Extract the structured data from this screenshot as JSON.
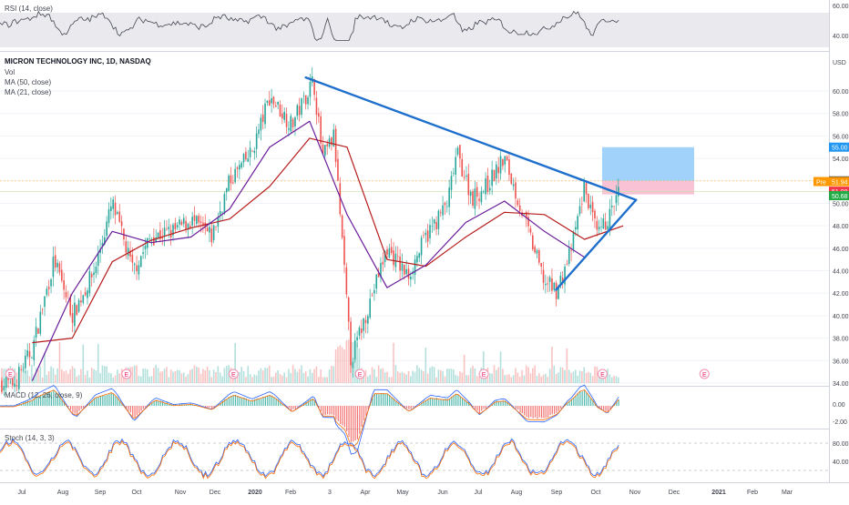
{
  "symbol": {
    "title": "MICRON TECHNOLOGY INC, 1D, NASDAQ",
    "currency": "USD",
    "indicators": [
      "Vol",
      "MA (50, close)",
      "MA (21, close)"
    ]
  },
  "panes": {
    "rsi": {
      "label": "RSI (14, close)",
      "ticks": [
        "60.00",
        "40.00"
      ],
      "bands": [
        30,
        70
      ]
    },
    "macd": {
      "label": "MACD (12, 26, close, 9)",
      "ticks": [
        "0.00",
        "-2.00"
      ]
    },
    "stoch": {
      "label": "Stoch (14, 3, 3)",
      "ticks": [
        "80.00",
        "40.00"
      ],
      "bands": [
        20,
        80
      ]
    }
  },
  "price_axis": {
    "ticks": [
      "60.00",
      "58.00",
      "56.00",
      "54.00",
      "52.00",
      "50.00",
      "48.00",
      "46.00",
      "44.00",
      "42.00",
      "40.00",
      "38.00",
      "36.00",
      "34.00"
    ],
    "badges": [
      {
        "label": "55.00",
        "value": 55.0,
        "color": "#2196f3"
      },
      {
        "label": "52.00",
        "value": 52.0,
        "color": "#434651"
      },
      {
        "label": "51.94",
        "prefix": "Pre",
        "value": 51.94,
        "color": "#ff9800"
      },
      {
        "label": "51.08",
        "value": 51.08,
        "color": "#f23645"
      },
      {
        "label": "50.68",
        "value": 50.68,
        "color": "#22ab45"
      }
    ]
  },
  "time_axis": {
    "labels": [
      "Jul",
      "Aug",
      "Sep",
      "Oct",
      "Nov",
      "Dec",
      "2020",
      "Feb",
      "3",
      "Apr",
      "May",
      "Jun",
      "Jul",
      "Aug",
      "Sep",
      "Oct",
      "Nov",
      "Dec",
      "2021",
      "Feb",
      "Mar"
    ]
  },
  "earnings_marker": "E",
  "colors": {
    "up": "#26a69a",
    "down": "#ef5350",
    "ma50": "#b71c1c",
    "ma21": "#6a1b9a",
    "trend": "#1e6fcc",
    "target": "#90caf9",
    "stop": "#f8bbd0"
  },
  "chart_data": {
    "type": "line",
    "title": "MICRON TECHNOLOGY INC, 1D, NASDAQ",
    "xlabel": "",
    "ylabel": "USD",
    "ylim": [
      33,
      63
    ],
    "grid": true,
    "x": [
      "2019-07",
      "2019-08",
      "2019-09",
      "2019-10",
      "2019-11",
      "2019-12",
      "2020-01",
      "2020-02",
      "2020-03",
      "2020-04",
      "2020-05",
      "2020-06",
      "2020-07",
      "2020-08",
      "2020-09",
      "2020-10"
    ],
    "series": [
      {
        "name": "MA (50, close)",
        "values": [
          37.6,
          38.0,
          44.8,
          46.7,
          47.8,
          48.6,
          51.5,
          55.8,
          55.0,
          45.0,
          44.4,
          47.0,
          49.2,
          49.0,
          46.8,
          48.0
        ]
      },
      {
        "name": "MA (21, close)",
        "values": [
          34.2,
          42.0,
          47.5,
          46.5,
          47.0,
          49.5,
          55.0,
          57.3,
          49.0,
          42.5,
          44.5,
          48.3,
          50.2,
          47.5,
          45.2,
          49.0
        ]
      }
    ],
    "price_path": [
      [
        "2019-07-01",
        34.0
      ],
      [
        "2019-07-15",
        37.0
      ],
      [
        "2019-08-01",
        45.0
      ],
      [
        "2019-08-15",
        40.0
      ],
      [
        "2019-09-01",
        44.0
      ],
      [
        "2019-09-15",
        50.0
      ],
      [
        "2019-10-01",
        44.0
      ],
      [
        "2019-10-15",
        47.0
      ],
      [
        "2019-11-01",
        47.5
      ],
      [
        "2019-11-15",
        48.5
      ],
      [
        "2019-12-01",
        47.0
      ],
      [
        "2019-12-15",
        52.0
      ],
      [
        "2020-01-01",
        54.5
      ],
      [
        "2020-01-15",
        59.5
      ],
      [
        "2020-02-01",
        57.0
      ],
      [
        "2020-02-18",
        61.0
      ],
      [
        "2020-02-25",
        54.0
      ],
      [
        "2020-03-05",
        56.0
      ],
      [
        "2020-03-18",
        36.0
      ],
      [
        "2020-04-01",
        41.0
      ],
      [
        "2020-04-15",
        46.0
      ],
      [
        "2020-05-01",
        43.5
      ],
      [
        "2020-05-15",
        47.0
      ],
      [
        "2020-06-01",
        50.0
      ],
      [
        "2020-06-08",
        54.5
      ],
      [
        "2020-06-20",
        50.5
      ],
      [
        "2020-07-01",
        51.5
      ],
      [
        "2020-07-15",
        54.0
      ],
      [
        "2020-07-25",
        50.5
      ],
      [
        "2020-08-01",
        48.0
      ],
      [
        "2020-08-15",
        43.0
      ],
      [
        "2020-08-25",
        42.2
      ],
      [
        "2020-09-05",
        46.0
      ],
      [
        "2020-09-15",
        51.5
      ],
      [
        "2020-09-25",
        47.0
      ],
      [
        "2020-10-05",
        49.0
      ],
      [
        "2020-10-12",
        51.1
      ]
    ],
    "trendlines": [
      {
        "from": [
          "2020-02-12",
          61.2
        ],
        "to": [
          "2020-10-25",
          50.3
        ]
      },
      {
        "from": [
          "2020-08-24",
          42.3
        ],
        "to": [
          "2020-10-25",
          50.3
        ]
      }
    ],
    "levels": {
      "target": 55.0,
      "entry": 52.0,
      "stop": 51.2
    },
    "earnings_dates": [
      "2019-06-28",
      "2019-09-26",
      "2019-12-18",
      "2020-03-25",
      "2020-06-29",
      "2020-09-29",
      "2020-12-17"
    ]
  }
}
